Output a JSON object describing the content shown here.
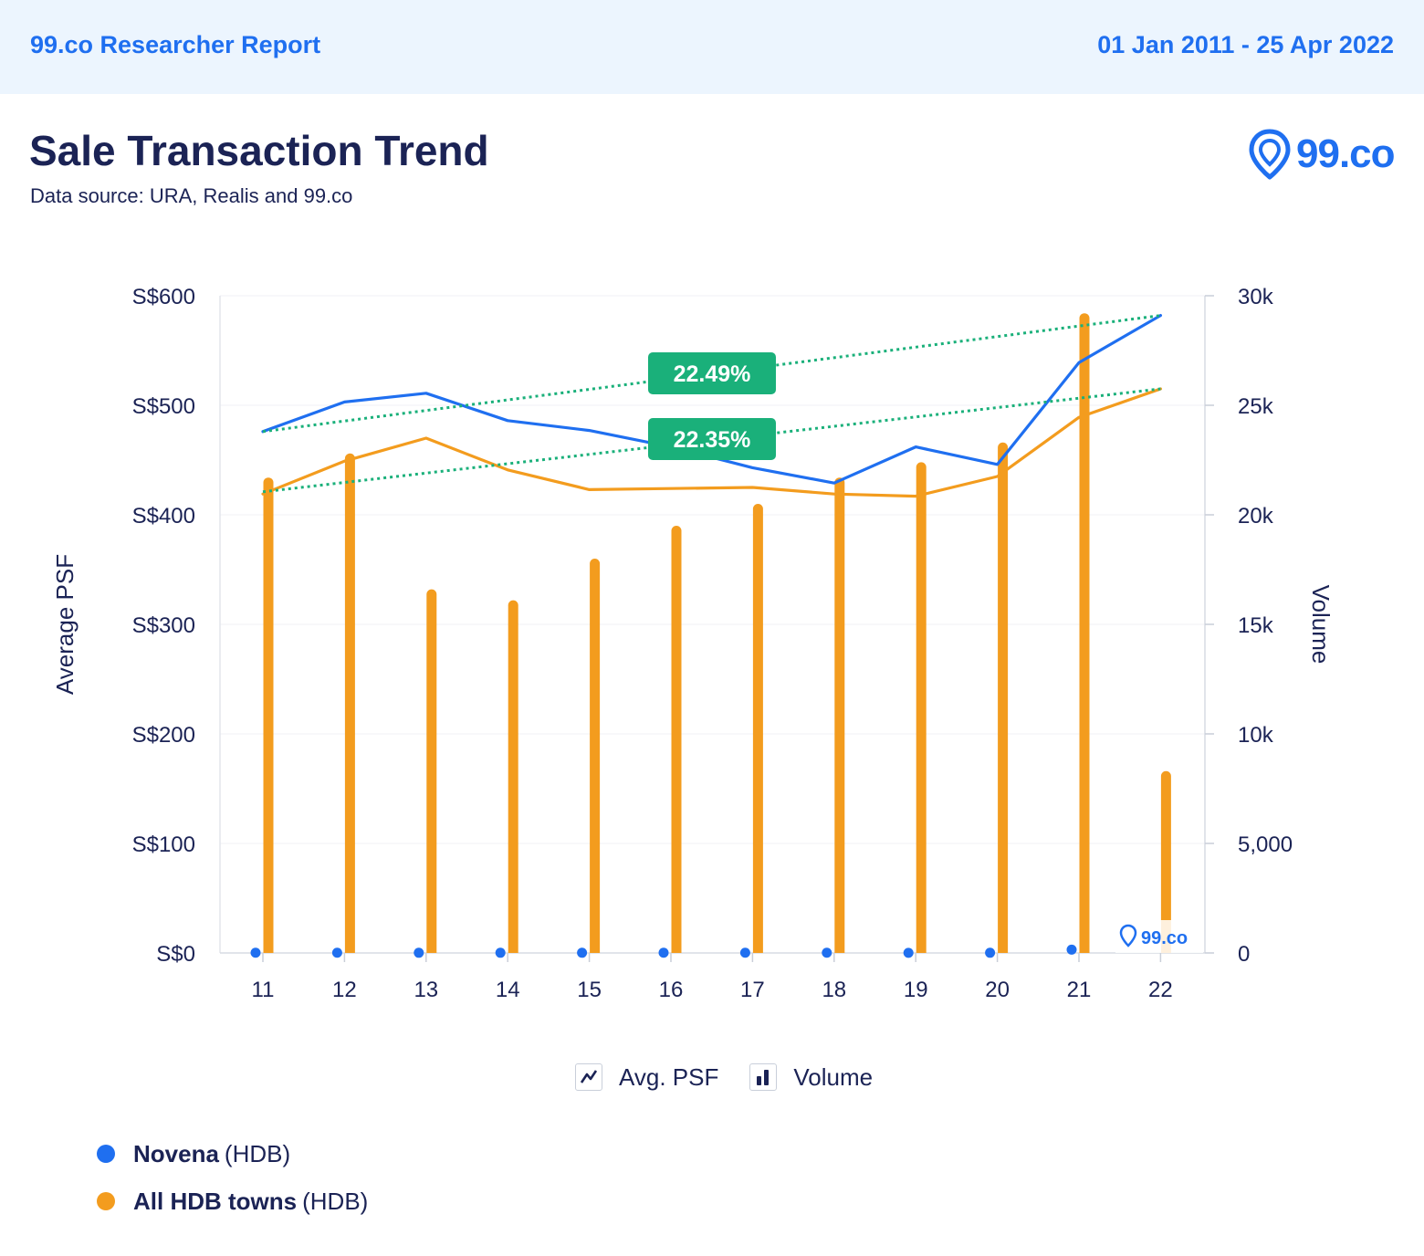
{
  "header": {
    "report_label": "99.co Researcher Report",
    "date_range": "01 Jan 2011 - 25 Apr 2022"
  },
  "title": "Sale Transaction Trend",
  "subtitle": "Data source: URA, Realis and 99.co",
  "logo": {
    "text": "99.co",
    "icon": "location-pin-icon"
  },
  "watermark": {
    "text": "99.co"
  },
  "legend_toggles": [
    {
      "label": "Avg. PSF",
      "icon": "line-chart-icon"
    },
    {
      "label": "Volume",
      "icon": "bar-chart-icon"
    }
  ],
  "series_legend": [
    {
      "name": "Novena",
      "type": "(HDB)",
      "color": "#1f6ff0"
    },
    {
      "name": "All HDB towns",
      "type": "(HDB)",
      "color": "#f39c1e"
    }
  ],
  "colors": {
    "novena": "#1f6ff0",
    "all_hdb": "#f39c1e",
    "trend": "#1ab07a",
    "badge": "#1ab07a"
  },
  "chart_data": {
    "type": "line",
    "categories": [
      "11",
      "12",
      "13",
      "14",
      "15",
      "16",
      "17",
      "18",
      "19",
      "20",
      "21",
      "22"
    ],
    "y_left": {
      "label": "Average PSF",
      "ticks": [
        "S$0",
        "S$100",
        "S$200",
        "S$300",
        "S$400",
        "S$500",
        "S$600"
      ],
      "range": [
        0,
        600
      ]
    },
    "y_right": {
      "label": "Volume",
      "ticks": [
        "0",
        "5,000",
        "10k",
        "15k",
        "20k",
        "25k",
        "30k"
      ],
      "range": [
        0,
        30000
      ]
    },
    "series": [
      {
        "name": "Novena",
        "kind": "psf",
        "axis": "left",
        "values": [
          476,
          503,
          511,
          486,
          477,
          462,
          443,
          429,
          462,
          446,
          539,
          582
        ]
      },
      {
        "name": "All HDB towns",
        "kind": "psf",
        "axis": "left",
        "values": [
          419,
          449,
          470,
          441,
          423,
          424,
          425,
          419,
          417,
          435,
          489,
          515
        ]
      },
      {
        "name": "Novena",
        "kind": "volume",
        "axis": "right",
        "values": [
          10,
          10,
          8,
          8,
          8,
          10,
          10,
          12,
          6,
          8,
          150,
          20
        ]
      },
      {
        "name": "All HDB towns",
        "kind": "volume",
        "axis": "right",
        "values": [
          21700,
          22800,
          16600,
          16100,
          18000,
          19500,
          20500,
          21700,
          22400,
          23300,
          29200,
          8300
        ]
      }
    ],
    "trendlines": [
      {
        "series": "Novena",
        "start": 476,
        "end": 582,
        "label": "22.49%"
      },
      {
        "series": "All HDB towns",
        "start": 421,
        "end": 515,
        "label": "22.35%"
      }
    ],
    "grid": true
  }
}
